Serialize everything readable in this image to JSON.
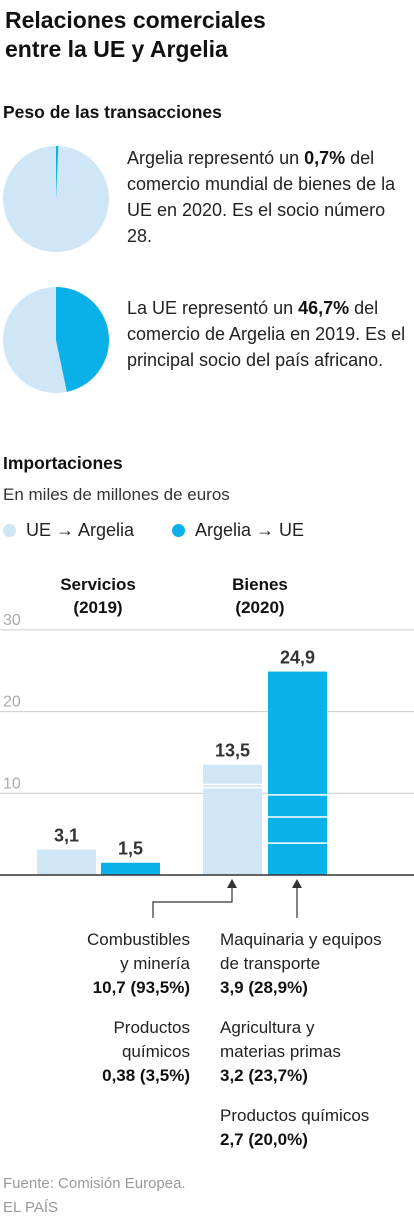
{
  "title_line1": "Relaciones comerciales",
  "title_line2": "entre la UE y Argelia",
  "weight": {
    "heading": "Peso de las transacciones",
    "pie1": {
      "share": 0.007,
      "text_pre": "Argelia representó un ",
      "text_bold": "0,7%",
      "text_post": " del comercio mundial de bienes de la UE en 2020. Es el socio número 28."
    },
    "pie2": {
      "share": 0.467,
      "text_pre": "La UE representó un ",
      "text_bold": "46,7%",
      "text_post": " del comercio de Argelia en 2019. Es el principal socio del país africano."
    }
  },
  "imports": {
    "heading": "Importaciones",
    "subtitle": "En miles de millones de euros",
    "legend": [
      "UE → Argelia",
      "Argelia → UE"
    ]
  },
  "colors": {
    "light": "#cfe6f6",
    "dark": "#0ab0e8",
    "grid": "#cccccc",
    "axis": "#333333"
  },
  "chart_data": {
    "type": "bar",
    "categories": [
      "Servicios (2019)",
      "Bienes (2020)"
    ],
    "category_lines": [
      [
        "Servicios",
        "(2019)"
      ],
      [
        "Bienes",
        "(2020)"
      ]
    ],
    "series": [
      {
        "name": "UE → Argelia",
        "values": [
          3.1,
          13.5
        ],
        "labels": [
          "3,1",
          "13,5"
        ]
      },
      {
        "name": "Argelia → UE",
        "values": [
          1.5,
          24.9
        ],
        "labels": [
          "1,5",
          "24,9"
        ]
      }
    ],
    "ylim": [
      0,
      30
    ],
    "yticks": [
      10,
      20,
      30
    ],
    "ytick_labels": [
      "10",
      "20",
      "30"
    ],
    "segments": {
      "UE → Argelia": [
        10.7,
        0.38
      ],
      "Argelia → UE": [
        3.9,
        3.2,
        2.7
      ]
    }
  },
  "notes": {
    "left": [
      {
        "label_lines": [
          "Combustibles",
          "y minería"
        ],
        "value": "10,7 (93,5%)"
      },
      {
        "label_lines": [
          "Productos",
          "químicos"
        ],
        "value": "0,38 (3,5%)"
      }
    ],
    "right": [
      {
        "label_lines": [
          "Maquinaria y equipos",
          "de transporte"
        ],
        "value": "3,9 (28,9%)"
      },
      {
        "label_lines": [
          "Agricultura y",
          "materias primas"
        ],
        "value": "3,2 (23,7%)"
      },
      {
        "label_lines": [
          "Productos químicos"
        ],
        "value": "2,7 (20,0%)"
      }
    ]
  },
  "footer": {
    "source": "Fuente: Comisión Europea.",
    "brand": "EL PAÍS"
  }
}
